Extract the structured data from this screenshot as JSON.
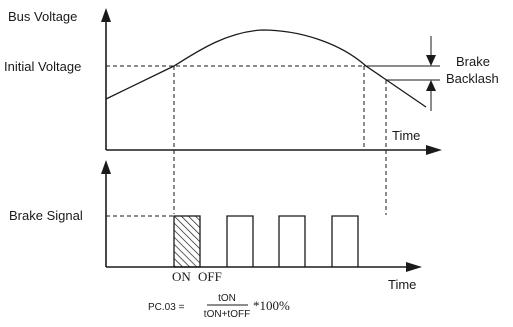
{
  "top_chart": {
    "y_axis_label": "Bus Voltage",
    "x_axis_label": "Time",
    "level_label": "Initial Voltage",
    "right_label_line1": "Brake",
    "right_label_line2": "Backlash"
  },
  "bottom_chart": {
    "y_axis_label": "Brake Signal",
    "x_axis_label": "Time",
    "on_label": "ON",
    "off_label": "OFF"
  },
  "formula": {
    "lhs": "PC.03 =",
    "numerator": "tON",
    "denominator": "tON+tOFF",
    "suffix": "*100%"
  },
  "colors": {
    "ink": "#1a1a1a",
    "background": "#ffffff"
  }
}
